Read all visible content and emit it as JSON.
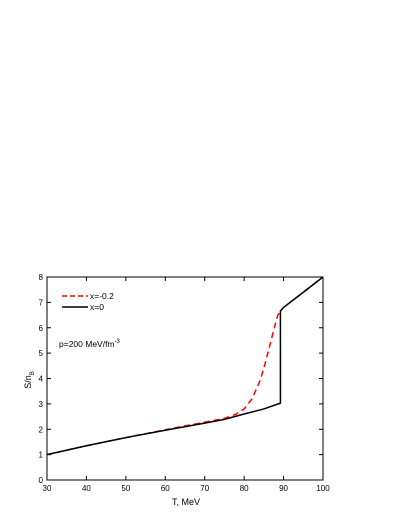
{
  "chart_data": {
    "type": "line",
    "title": "",
    "xlabel": "T, MeV",
    "ylabel_main": "S/n",
    "ylabel_sub": "B",
    "xlim": [
      30,
      100
    ],
    "ylim": [
      0,
      8
    ],
    "xticks": [
      30,
      40,
      50,
      60,
      70,
      80,
      90,
      100
    ],
    "yticks": [
      0,
      1,
      2,
      3,
      4,
      5,
      6,
      7,
      8
    ],
    "grid": false,
    "legend_placement": "top-left",
    "annotation": {
      "text": "p=200 MeV/fm",
      "superscript": "-3"
    },
    "series": [
      {
        "name": "x=-0.2",
        "color": "#ff0000",
        "dash": "dashed",
        "x": [
          30,
          40,
          50,
          60,
          70,
          75,
          78,
          80,
          82,
          84,
          85,
          86,
          87,
          88,
          88.5,
          89,
          89.2,
          90,
          95,
          100
        ],
        "y": [
          1.0,
          1.35,
          1.67,
          1.98,
          2.28,
          2.43,
          2.6,
          2.8,
          3.2,
          3.9,
          4.4,
          5.0,
          5.6,
          6.2,
          6.48,
          6.62,
          6.66,
          6.8,
          7.4,
          8.0
        ]
      },
      {
        "name": "x=0",
        "color": "#000000",
        "dash": "solid",
        "x": [
          30,
          40,
          50,
          60,
          70,
          75,
          80,
          85,
          89.2,
          89.2,
          90,
          95,
          100
        ],
        "y": [
          1.0,
          1.35,
          1.67,
          1.96,
          2.24,
          2.39,
          2.6,
          2.8,
          3.03,
          6.66,
          6.8,
          7.4,
          8.0
        ]
      }
    ]
  }
}
